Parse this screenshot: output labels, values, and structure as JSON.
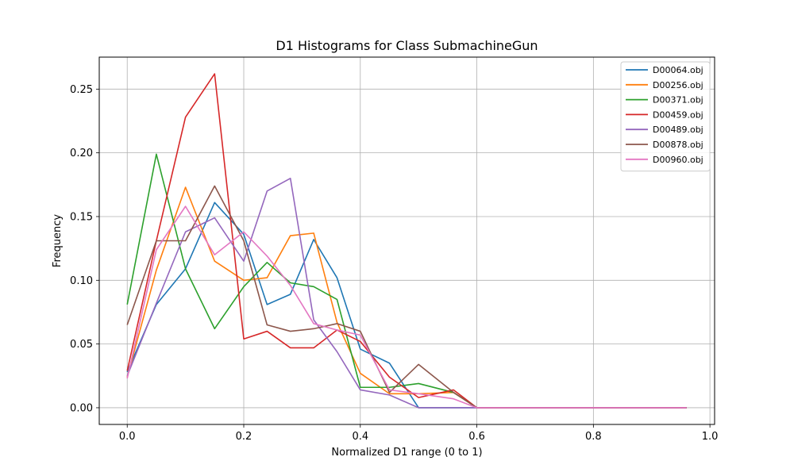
{
  "chart_data": {
    "type": "line",
    "title": "D1 Histograms for Class SubmachineGun",
    "xlabel": "Normalized D1 range (0 to 1)",
    "ylabel": "Frequency",
    "xlim": [
      -0.048,
      1.008
    ],
    "ylim": [
      -0.0131,
      0.2751
    ],
    "xticks": [
      0.0,
      0.2,
      0.4,
      0.6,
      0.8,
      1.0
    ],
    "xtick_labels": [
      "0.0",
      "0.2",
      "0.4",
      "0.6",
      "0.8",
      "1.0"
    ],
    "yticks": [
      0.0,
      0.05,
      0.1,
      0.15,
      0.2,
      0.25
    ],
    "ytick_labels": [
      "0.00",
      "0.05",
      "0.10",
      "0.15",
      "0.20",
      "0.25"
    ],
    "grid": true,
    "legend_position": "top-right",
    "x": [
      0.0,
      0.05,
      0.1,
      0.15,
      0.2,
      0.24,
      0.28,
      0.32,
      0.36,
      0.4,
      0.45,
      0.5,
      0.56,
      0.6,
      0.65,
      0.7,
      0.75,
      0.8,
      0.85,
      0.9,
      0.96
    ],
    "series": [
      {
        "name": "D00064.obj",
        "color": "#1f77b4",
        "values": [
          0.028,
          0.081,
          0.109,
          0.161,
          0.136,
          0.081,
          0.089,
          0.132,
          0.102,
          0.046,
          0.035,
          0.0,
          0.0,
          0.0,
          0.0,
          0.0,
          0.0,
          0.0,
          0.0,
          0.0,
          0.0
        ]
      },
      {
        "name": "D00256.obj",
        "color": "#ff7f0e",
        "values": [
          0.024,
          0.108,
          0.173,
          0.115,
          0.1,
          0.102,
          0.135,
          0.137,
          0.067,
          0.027,
          0.011,
          0.011,
          0.012,
          0.0,
          0.0,
          0.0,
          0.0,
          0.0,
          0.0,
          0.0,
          0.0
        ]
      },
      {
        "name": "D00371.obj",
        "color": "#2ca02c",
        "values": [
          0.081,
          0.199,
          0.109,
          0.062,
          0.095,
          0.114,
          0.098,
          0.095,
          0.085,
          0.016,
          0.016,
          0.019,
          0.012,
          0.0,
          0.0,
          0.0,
          0.0,
          0.0,
          0.0,
          0.0,
          0.0
        ]
      },
      {
        "name": "D00459.obj",
        "color": "#d62728",
        "values": [
          0.029,
          0.131,
          0.228,
          0.262,
          0.054,
          0.06,
          0.047,
          0.047,
          0.061,
          0.052,
          0.024,
          0.008,
          0.014,
          0.0,
          0.0,
          0.0,
          0.0,
          0.0,
          0.0,
          0.0,
          0.0
        ]
      },
      {
        "name": "D00489.obj",
        "color": "#9467bd",
        "values": [
          0.025,
          0.082,
          0.138,
          0.149,
          0.115,
          0.17,
          0.18,
          0.069,
          0.044,
          0.014,
          0.01,
          0.0,
          0.0,
          0.0,
          0.0,
          0.0,
          0.0,
          0.0,
          0.0,
          0.0,
          0.0
        ]
      },
      {
        "name": "D00878.obj",
        "color": "#8c564b",
        "values": [
          0.065,
          0.131,
          0.131,
          0.174,
          0.131,
          0.065,
          0.06,
          0.062,
          0.066,
          0.06,
          0.012,
          0.034,
          0.012,
          0.0,
          0.0,
          0.0,
          0.0,
          0.0,
          0.0,
          0.0,
          0.0
        ]
      },
      {
        "name": "D00960.obj",
        "color": "#e377c2",
        "values": [
          0.023,
          0.124,
          0.158,
          0.12,
          0.138,
          0.119,
          0.096,
          0.066,
          0.061,
          0.057,
          0.014,
          0.011,
          0.007,
          0.0,
          0.0,
          0.0,
          0.0,
          0.0,
          0.0,
          0.0,
          0.0
        ]
      }
    ]
  }
}
